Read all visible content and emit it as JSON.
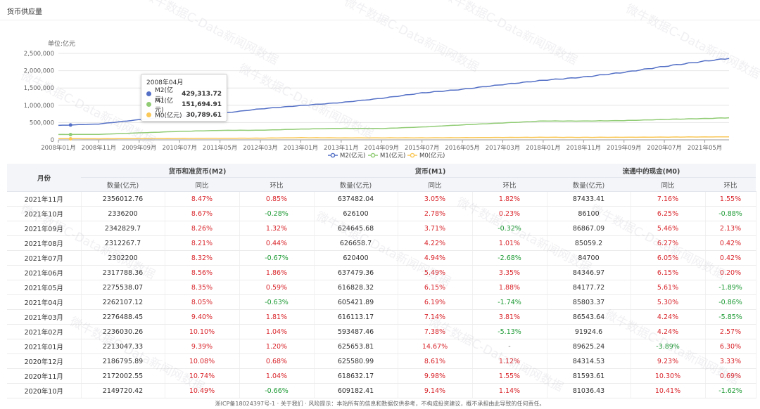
{
  "page_title": "货币供应量",
  "chart_data": {
    "type": "line",
    "unit_label": "单位:亿元",
    "x_ticks": [
      "2008年01月",
      "2008年11月",
      "2009年09月",
      "2010年07月",
      "2011年05月",
      "2012年03月",
      "2013年01月",
      "2013年11月",
      "2014年09月",
      "2015年07月",
      "2016年05月",
      "2017年03月",
      "2018年01月",
      "2018年11月",
      "2019年09月",
      "2020年07月",
      "2021年05月"
    ],
    "y_ticks": [
      "0",
      "500,000",
      "1,000,000",
      "1,500,000",
      "2,000,000",
      "2,500,000"
    ],
    "ylim": [
      0,
      2500000
    ],
    "x_range": [
      "2008年01月",
      "2021年11月"
    ],
    "series": [
      {
        "name": "M2(亿元)",
        "color": "#5470c6",
        "points": [
          [
            "2008-01",
            417846
          ],
          [
            "2008-11",
            458644
          ],
          [
            "2009-09",
            585405
          ],
          [
            "2010-07",
            674051
          ],
          [
            "2011-05",
            763409
          ],
          [
            "2012-03",
            895565
          ],
          [
            "2013-01",
            992129
          ],
          [
            "2013-11",
            1079258
          ],
          [
            "2014-09",
            1202051
          ],
          [
            "2015-07",
            1356988
          ],
          [
            "2016-05",
            1461695
          ],
          [
            "2017-03",
            1599609
          ],
          [
            "2018-01",
            1721600
          ],
          [
            "2018-11",
            1815700
          ],
          [
            "2019-09",
            1952500
          ],
          [
            "2020-07",
            2125458
          ],
          [
            "2021-05",
            2275538
          ],
          [
            "2021-11",
            2356013
          ]
        ]
      },
      {
        "name": "M1(亿元)",
        "color": "#91cc75",
        "points": [
          [
            "2008-01",
            154872
          ],
          [
            "2008-11",
            157826
          ],
          [
            "2009-09",
            201708
          ],
          [
            "2010-07",
            244340
          ],
          [
            "2011-05",
            274000
          ],
          [
            "2012-03",
            277998
          ],
          [
            "2013-01",
            311228
          ],
          [
            "2013-11",
            333000
          ],
          [
            "2014-09",
            327220
          ],
          [
            "2015-07",
            371900
          ],
          [
            "2016-05",
            432760
          ],
          [
            "2017-03",
            488770
          ],
          [
            "2018-01",
            545637
          ],
          [
            "2018-11",
            543500
          ],
          [
            "2019-09",
            557100
          ],
          [
            "2020-07",
            591200
          ],
          [
            "2021-05",
            616828
          ],
          [
            "2021-11",
            637482
          ]
        ]
      },
      {
        "name": "M0(亿元)",
        "color": "#fac858",
        "points": [
          [
            "2008-01",
            36673
          ],
          [
            "2008-11",
            31600
          ],
          [
            "2009-09",
            36800
          ],
          [
            "2010-07",
            40800
          ],
          [
            "2011-05",
            44900
          ],
          [
            "2012-03",
            49600
          ],
          [
            "2013-01",
            62800
          ],
          [
            "2013-11",
            57300
          ],
          [
            "2014-09",
            58800
          ],
          [
            "2015-07",
            58600
          ],
          [
            "2016-05",
            62800
          ],
          [
            "2017-03",
            68600
          ],
          [
            "2018-01",
            72700
          ],
          [
            "2018-11",
            71200
          ],
          [
            "2019-09",
            74100
          ],
          [
            "2020-07",
            79500
          ],
          [
            "2021-05",
            84178
          ],
          [
            "2021-11",
            87433
          ]
        ]
      }
    ],
    "tooltip": {
      "date": "2008年04月",
      "items": [
        {
          "name": "M2(亿元)",
          "value": "429,313.72",
          "color": "#5470c6"
        },
        {
          "name": "M1(亿元)",
          "value": "151,694.91",
          "color": "#91cc75"
        },
        {
          "name": "M0(亿元)",
          "value": "30,789.61",
          "color": "#fac858"
        }
      ]
    },
    "legend": [
      "M2(亿元)",
      "M1(亿元)",
      "M0(亿元)"
    ],
    "legend_position": "bottom"
  },
  "table": {
    "month_header": "月份",
    "groups": [
      "货币和准货币(M2)",
      "货币(M1)",
      "流通中的现金(M0)"
    ],
    "subheaders": [
      "数量(亿元)",
      "同比",
      "环比",
      "数量(亿元)",
      "同比",
      "环比",
      "数量(亿元)",
      "同比",
      "环比"
    ],
    "rows": [
      [
        "2021年11月",
        "2356012.76",
        "8.47%",
        "0.85%",
        "637482.04",
        "3.05%",
        "1.82%",
        "87433.41",
        "7.16%",
        "1.55%"
      ],
      [
        "2021年10月",
        "2336200",
        "8.67%",
        "-0.28%",
        "626100",
        "2.78%",
        "0.23%",
        "86100",
        "6.25%",
        "-0.88%"
      ],
      [
        "2021年09月",
        "2342829.7",
        "8.26%",
        "1.32%",
        "624645.68",
        "3.71%",
        "-0.32%",
        "86867.09",
        "5.46%",
        "2.13%"
      ],
      [
        "2021年08月",
        "2312267.7",
        "8.21%",
        "0.44%",
        "626658.7",
        "4.22%",
        "1.01%",
        "85059.2",
        "6.27%",
        "0.42%"
      ],
      [
        "2021年07月",
        "2302200",
        "8.32%",
        "-0.67%",
        "620400",
        "4.94%",
        "-2.68%",
        "84700",
        "6.05%",
        "0.42%"
      ],
      [
        "2021年06月",
        "2317788.36",
        "8.56%",
        "1.86%",
        "637479.36",
        "5.49%",
        "3.35%",
        "84346.97",
        "6.15%",
        "0.20%"
      ],
      [
        "2021年05月",
        "2275538.07",
        "8.35%",
        "0.59%",
        "616828.32",
        "6.15%",
        "1.88%",
        "84177.72",
        "5.61%",
        "-1.89%"
      ],
      [
        "2021年04月",
        "2262107.12",
        "8.05%",
        "-0.63%",
        "605421.89",
        "6.19%",
        "-1.74%",
        "85803.37",
        "5.30%",
        "-0.86%"
      ],
      [
        "2021年03月",
        "2276488.45",
        "9.40%",
        "1.81%",
        "616113.17",
        "7.14%",
        "3.81%",
        "86543.64",
        "4.24%",
        "-5.85%"
      ],
      [
        "2021年02月",
        "2236030.26",
        "10.10%",
        "1.04%",
        "593487.46",
        "7.38%",
        "-5.13%",
        "91924.6",
        "4.24%",
        "2.57%"
      ],
      [
        "2021年01月",
        "2213047.33",
        "9.39%",
        "1.20%",
        "625653.81",
        "14.67%",
        "-",
        "89625.24",
        "-3.89%",
        "6.30%"
      ],
      [
        "2020年12月",
        "2186795.89",
        "10.08%",
        "0.68%",
        "625580.99",
        "8.61%",
        "1.12%",
        "84314.53",
        "9.23%",
        "3.33%"
      ],
      [
        "2020年11月",
        "2172002.55",
        "10.74%",
        "1.04%",
        "618632.17",
        "9.98%",
        "1.55%",
        "81593.61",
        "10.30%",
        "0.69%"
      ],
      [
        "2020年10月",
        "2149720.42",
        "10.49%",
        "-0.66%",
        "609182.41",
        "9.14%",
        "1.14%",
        "81036.43",
        "10.41%",
        "-1.62%"
      ]
    ]
  },
  "footer": "浙ICP备18024397号-1 · 关于我们 · 风险提示：本站所有的信息和数据仅供参考，不构成投资建议，概不承担由此导致的任何责任。",
  "watermark_text": "微牛数据C-Data新闻网数据"
}
